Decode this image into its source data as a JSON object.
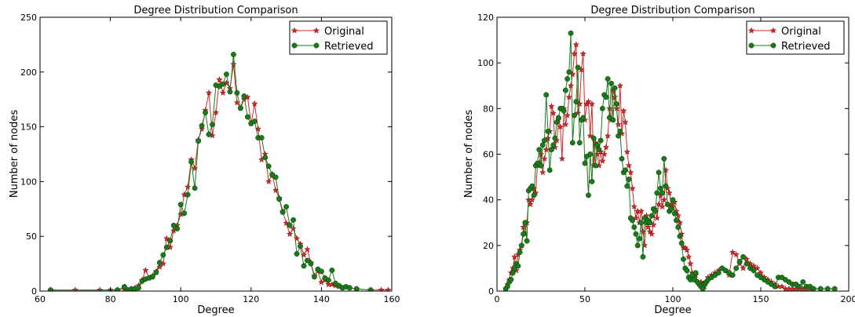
{
  "chart_data": [
    {
      "type": "line",
      "title": "Degree Distribution Comparison",
      "xlabel": "Degree",
      "ylabel": "Number of nodes",
      "xlim": [
        60,
        160
      ],
      "ylim": [
        0,
        250
      ],
      "xticks": [
        60,
        80,
        100,
        120,
        140,
        160
      ],
      "yticks": [
        0,
        50,
        100,
        150,
        200,
        250
      ],
      "grid": false,
      "legend_position": "top-right",
      "series": [
        {
          "name": "Original",
          "color": "#d62728",
          "marker": "star",
          "x": [
            63,
            70,
            77,
            80,
            82,
            84,
            85,
            86,
            87,
            88,
            89,
            90,
            91,
            92,
            93,
            94,
            95,
            96,
            97,
            98,
            99,
            100,
            101,
            102,
            103,
            104,
            105,
            106,
            107,
            108,
            109,
            110,
            111,
            112,
            113,
            114,
            115,
            116,
            117,
            118,
            119,
            120,
            121,
            122,
            123,
            124,
            125,
            126,
            127,
            128,
            129,
            130,
            131,
            132,
            133,
            134,
            135,
            136,
            137,
            138,
            139,
            140,
            141,
            142,
            143,
            144,
            145,
            146,
            148,
            150,
            154,
            157,
            159
          ],
          "y": [
            1,
            1,
            1,
            1,
            1,
            2,
            1,
            2,
            3,
            5,
            10,
            19,
            12,
            14,
            18,
            22,
            25,
            48,
            40,
            55,
            60,
            70,
            88,
            95,
            120,
            112,
            138,
            148,
            165,
            181,
            142,
            163,
            193,
            181,
            190,
            185,
            207,
            172,
            167,
            175,
            177,
            153,
            171,
            148,
            120,
            125,
            100,
            107,
            92,
            85,
            73,
            62,
            52,
            57,
            48,
            43,
            33,
            38,
            26,
            14,
            18,
            8,
            10,
            6,
            6,
            5,
            4,
            3,
            3,
            2,
            1,
            1,
            1
          ]
        },
        {
          "name": "Retrieved",
          "color": "#1a7a1a",
          "marker": "circle",
          "x": [
            63,
            82,
            84,
            85,
            86,
            87,
            88,
            89,
            90,
            91,
            92,
            93,
            94,
            95,
            96,
            97,
            98,
            99,
            100,
            101,
            102,
            103,
            104,
            105,
            106,
            107,
            108,
            109,
            110,
            111,
            112,
            113,
            114,
            115,
            116,
            117,
            118,
            119,
            120,
            121,
            122,
            123,
            124,
            125,
            126,
            127,
            128,
            129,
            130,
            131,
            132,
            133,
            134,
            135,
            136,
            137,
            138,
            139,
            140,
            141,
            142,
            143,
            144,
            145,
            146,
            147,
            148,
            150,
            154
          ],
          "y": [
            1,
            1,
            4,
            1,
            2,
            2,
            3,
            9,
            11,
            12,
            13,
            17,
            26,
            33,
            40,
            46,
            60,
            57,
            79,
            71,
            88,
            118,
            94,
            137,
            151,
            163,
            143,
            152,
            188,
            187,
            189,
            198,
            182,
            216,
            181,
            167,
            178,
            159,
            153,
            155,
            140,
            140,
            122,
            114,
            106,
            104,
            84,
            72,
            77,
            60,
            65,
            34,
            41,
            23,
            28,
            25,
            13,
            20,
            18,
            12,
            10,
            19,
            7,
            5,
            3,
            4,
            3,
            2,
            1
          ]
        }
      ]
    },
    {
      "type": "line",
      "title": "Degree Distribution Comparison",
      "xlabel": "Degree",
      "ylabel": "Number of nodes",
      "xlim": [
        0,
        200
      ],
      "ylim": [
        0,
        120
      ],
      "xticks": [
        0,
        50,
        100,
        150,
        200
      ],
      "yticks": [
        0,
        20,
        40,
        60,
        80,
        100,
        120
      ],
      "grid": false,
      "legend_position": "top-right",
      "series": [
        {
          "name": "Original",
          "color": "#d62728",
          "marker": "star",
          "x": [
            5,
            6,
            7,
            8,
            9,
            10,
            11,
            12,
            13,
            14,
            15,
            16,
            17,
            18,
            19,
            20,
            21,
            22,
            23,
            24,
            25,
            26,
            27,
            28,
            29,
            30,
            31,
            32,
            33,
            34,
            35,
            36,
            37,
            38,
            39,
            40,
            41,
            42,
            43,
            44,
            45,
            46,
            47,
            48,
            49,
            50,
            51,
            52,
            53,
            54,
            55,
            56,
            57,
            58,
            59,
            60,
            61,
            62,
            63,
            64,
            65,
            66,
            67,
            68,
            69,
            70,
            71,
            72,
            73,
            74,
            75,
            76,
            77,
            78,
            79,
            80,
            81,
            82,
            83,
            84,
            85,
            86,
            87,
            88,
            89,
            90,
            91,
            92,
            93,
            94,
            95,
            96,
            97,
            98,
            99,
            100,
            101,
            102,
            103,
            104,
            105,
            106,
            107,
            108,
            109,
            110,
            111,
            112,
            113,
            114,
            115,
            116,
            117,
            118,
            119,
            120,
            122,
            124,
            126,
            128,
            130,
            132,
            134,
            136,
            138,
            140,
            142,
            144,
            146,
            148,
            150,
            152,
            154,
            156,
            158,
            160,
            162,
            164,
            166,
            168,
            170,
            172,
            174,
            176,
            178,
            180,
            184,
            188,
            192
          ],
          "y": [
            1,
            3,
            5,
            8,
            10,
            15,
            9,
            16,
            18,
            20,
            28,
            25,
            30,
            40,
            38,
            40,
            45,
            43,
            55,
            56,
            60,
            52,
            58,
            62,
            67,
            70,
            81,
            78,
            63,
            66,
            75,
            72,
            58,
            80,
            73,
            77,
            85,
            90,
            95,
            104,
            108,
            78,
            82,
            97,
            104,
            75,
            82,
            83,
            68,
            82,
            55,
            65,
            60,
            55,
            61,
            57,
            60,
            63,
            68,
            80,
            75,
            88,
            85,
            80,
            73,
            90,
            69,
            79,
            74,
            61,
            55,
            52,
            45,
            37,
            32,
            35,
            30,
            35,
            26,
            20,
            33,
            28,
            26,
            25,
            29,
            36,
            32,
            38,
            42,
            37,
            40,
            53,
            45,
            43,
            38,
            37,
            39,
            35,
            33,
            30,
            25,
            19,
            19,
            18,
            15,
            12,
            8,
            6,
            7,
            4,
            3,
            4,
            3,
            2,
            4,
            6,
            7,
            8,
            9,
            10,
            9,
            7,
            17,
            16,
            12,
            10,
            14,
            12,
            11,
            10,
            8,
            6,
            5,
            4,
            3,
            2,
            2,
            1,
            1,
            1,
            1,
            1,
            1,
            1,
            1,
            1,
            1,
            1,
            1
          ]
        },
        {
          "name": "Retrieved",
          "color": "#1a7a1a",
          "marker": "circle",
          "x": [
            5,
            6,
            7,
            8,
            9,
            10,
            11,
            12,
            13,
            14,
            15,
            16,
            17,
            18,
            19,
            20,
            21,
            22,
            23,
            24,
            25,
            26,
            27,
            28,
            29,
            30,
            31,
            32,
            33,
            34,
            35,
            36,
            37,
            38,
            39,
            40,
            41,
            42,
            43,
            44,
            45,
            46,
            47,
            48,
            49,
            50,
            51,
            52,
            53,
            54,
            55,
            56,
            57,
            58,
            59,
            60,
            61,
            62,
            63,
            64,
            65,
            66,
            67,
            68,
            69,
            70,
            71,
            72,
            73,
            74,
            75,
            76,
            77,
            78,
            79,
            80,
            81,
            82,
            83,
            84,
            85,
            86,
            87,
            88,
            89,
            90,
            91,
            92,
            93,
            94,
            95,
            96,
            97,
            98,
            99,
            100,
            101,
            102,
            103,
            104,
            105,
            106,
            107,
            108,
            109,
            110,
            111,
            112,
            113,
            114,
            115,
            116,
            117,
            118,
            119,
            120,
            122,
            124,
            126,
            128,
            130,
            132,
            134,
            136,
            138,
            140,
            142,
            144,
            146,
            148,
            150,
            152,
            154,
            156,
            158,
            160,
            162,
            164,
            166,
            168,
            170,
            172,
            174,
            176,
            178,
            180,
            184,
            188,
            192
          ],
          "y": [
            1,
            2,
            4,
            5,
            8,
            10,
            12,
            11,
            17,
            20,
            25,
            30,
            22,
            44,
            45,
            46,
            42,
            55,
            56,
            62,
            55,
            64,
            66,
            86,
            70,
            53,
            62,
            64,
            67,
            74,
            76,
            80,
            80,
            79,
            88,
            93,
            96,
            113,
            65,
            77,
            83,
            98,
            65,
            75,
            76,
            56,
            59,
            42,
            60,
            48,
            67,
            55,
            64,
            62,
            66,
            80,
            86,
            85,
            93,
            76,
            91,
            75,
            89,
            82,
            68,
            70,
            58,
            52,
            53,
            46,
            49,
            32,
            31,
            28,
            25,
            20,
            23,
            30,
            15,
            32,
            30,
            31,
            30,
            33,
            36,
            35,
            43,
            52,
            45,
            43,
            58,
            46,
            38,
            35,
            36,
            40,
            34,
            31,
            28,
            24,
            21,
            14,
            10,
            9,
            6,
            5,
            7,
            5,
            8,
            4,
            3,
            2,
            1,
            3,
            4,
            5,
            6,
            7,
            8,
            10,
            9,
            8,
            7,
            10,
            13,
            15,
            12,
            10,
            9,
            7,
            6,
            5,
            4,
            3,
            2,
            6,
            6,
            5,
            4,
            3,
            3,
            2,
            4,
            2,
            2,
            1,
            1,
            1,
            1
          ]
        }
      ]
    }
  ]
}
